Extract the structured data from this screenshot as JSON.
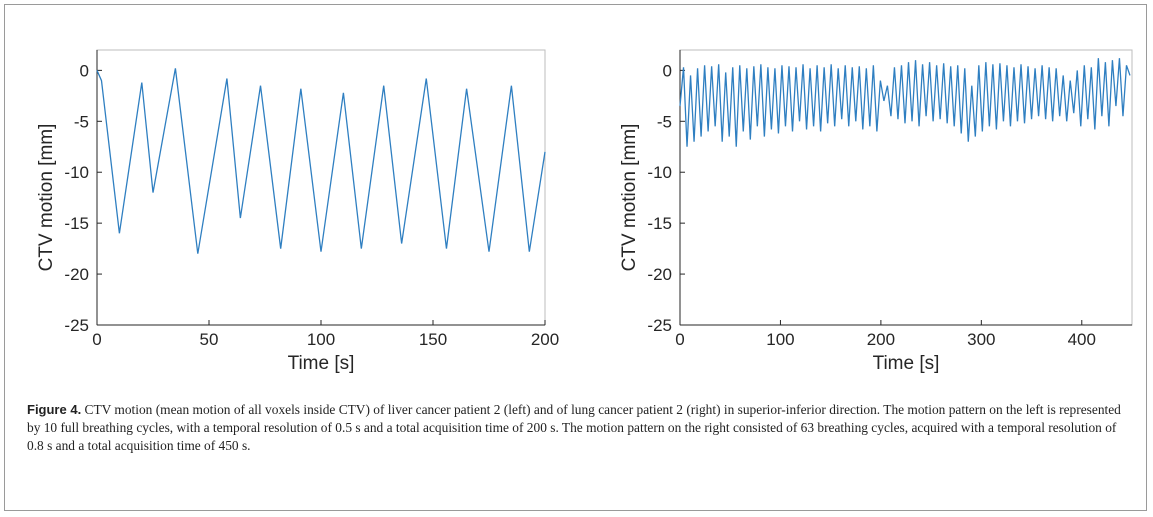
{
  "chart_data": [
    {
      "type": "line",
      "xlabel": "Time [s]",
      "ylabel": "CTV motion [mm]",
      "xlim": [
        0,
        200
      ],
      "ylim": [
        -25,
        2
      ],
      "xticks": [
        0,
        50,
        100,
        150,
        200
      ],
      "yticks": [
        -25,
        -20,
        -15,
        -10,
        -5,
        0
      ],
      "series": [
        {
          "color": "#2f7fc1",
          "x": [
            0,
            2,
            10,
            20,
            25,
            35,
            45,
            58,
            64,
            73,
            82,
            91,
            100,
            110,
            118,
            128,
            136,
            147,
            156,
            165,
            175,
            185,
            193,
            200
          ],
          "values": [
            0,
            -1,
            -16,
            -1.2,
            -12,
            0.2,
            -18,
            -0.8,
            -14.5,
            -1.5,
            -17.5,
            -1.8,
            -17.8,
            -2.2,
            -17.5,
            -1.5,
            -17,
            -0.8,
            -17.5,
            -1.8,
            -17.8,
            -1.5,
            -17.8,
            -8
          ]
        }
      ]
    },
    {
      "type": "line",
      "xlabel": "Time [s]",
      "ylabel": "CTV motion [mm]",
      "xlim": [
        0,
        450
      ],
      "ylim": [
        -25,
        2
      ],
      "xticks": [
        0,
        100,
        200,
        300,
        400
      ],
      "yticks": [
        -25,
        -20,
        -15,
        -10,
        -5,
        0
      ],
      "series": [
        {
          "color": "#2f7fc1",
          "x": [
            0,
            3.5,
            7,
            10.5,
            14,
            17.5,
            21,
            24.5,
            28,
            31.5,
            35,
            38.5,
            42,
            45.5,
            49,
            52.5,
            56,
            59.5,
            63,
            66.5,
            70,
            73.5,
            77,
            80.5,
            84,
            87.5,
            91,
            94.5,
            98,
            101.5,
            105,
            108.5,
            112,
            115.5,
            119,
            122.5,
            126,
            129.5,
            133,
            136.5,
            140,
            143.5,
            147,
            150.5,
            154,
            157.5,
            161,
            164.5,
            168,
            171.5,
            175,
            178.5,
            182,
            185.5,
            189,
            192.5,
            196,
            199.5,
            203,
            206.5,
            210,
            213.5,
            217,
            220.5,
            224,
            227.5,
            231,
            234.5,
            238,
            241.5,
            245,
            248.5,
            252,
            255.5,
            259,
            262.5,
            266,
            269.5,
            273,
            276.5,
            280,
            283.5,
            287,
            290.5,
            294,
            297.5,
            301,
            304.5,
            308,
            311.5,
            315,
            318.5,
            322,
            325.5,
            329,
            332.5,
            336,
            339.5,
            343,
            346.5,
            350,
            353.5,
            357,
            360.5,
            364,
            367.5,
            371,
            374.5,
            378,
            381.5,
            385,
            388.5,
            392,
            395.5,
            399,
            402.5,
            406,
            409.5,
            413,
            416.5,
            420,
            423.5,
            427,
            430.5,
            434,
            437.5,
            441,
            444.5,
            448
          ],
          "values": [
            -3.5,
            0.3,
            -7.5,
            -0.5,
            -7,
            0.2,
            -6.5,
            0.5,
            -6,
            0.4,
            -5.5,
            0.6,
            -7,
            -0.2,
            -6.5,
            0.3,
            -7.5,
            0.5,
            -6,
            0.2,
            -6.8,
            0.4,
            -5.5,
            0.6,
            -6.5,
            0.3,
            -5.8,
            0.2,
            -6.2,
            0.5,
            -5.5,
            0.4,
            -6,
            0.3,
            -5,
            0.6,
            -5.8,
            0.2,
            -5.5,
            0.5,
            -6,
            0.3,
            -5.2,
            0.6,
            -5.5,
            0.2,
            -4.8,
            0.5,
            -5.5,
            0.3,
            -5,
            0.4,
            -5.8,
            0.2,
            -5.5,
            0.5,
            -6,
            -1,
            -3,
            -1.5,
            -4.5,
            0.3,
            -4.8,
            0.5,
            -5.2,
            0.8,
            -5,
            1,
            -5.5,
            0.6,
            -4.5,
            0.8,
            -5,
            0.5,
            -4.8,
            0.7,
            -5.2,
            0.4,
            -5.5,
            0.5,
            -6.2,
            0.2,
            -7,
            -1.5,
            -6.5,
            0.5,
            -6,
            0.8,
            -5.5,
            0.6,
            -5.8,
            0.7,
            -5,
            0.5,
            -5.5,
            0.3,
            -5,
            0.6,
            -5.2,
            0.4,
            -4.8,
            0.2,
            -4.5,
            0.5,
            -4.8,
            0.3,
            -5,
            0.2,
            -4.5,
            -0.5,
            -5,
            -1,
            -4.2,
            0,
            -5.5,
            0.5,
            -4.8,
            0.3,
            -5.8,
            1.2,
            -4.5,
            0.8,
            -5.5,
            1,
            -3.5,
            1.2,
            -4.5,
            0.5,
            -0.5
          ]
        }
      ]
    }
  ],
  "caption": {
    "label": "Figure 4.",
    "text": "CTV motion (mean motion of all voxels inside CTV) of liver cancer patient 2 (left) and of lung cancer patient 2 (right) in superior-inferior direction. The motion pattern on the left is represented by 10 full breathing cycles, with a temporal resolution of 0.5 s and a total acquisition time of 200 s. The motion pattern on the right consisted of 63 breathing cycles, acquired with a temporal resolution of 0.8 s and a total acquisition time of 450 s."
  }
}
